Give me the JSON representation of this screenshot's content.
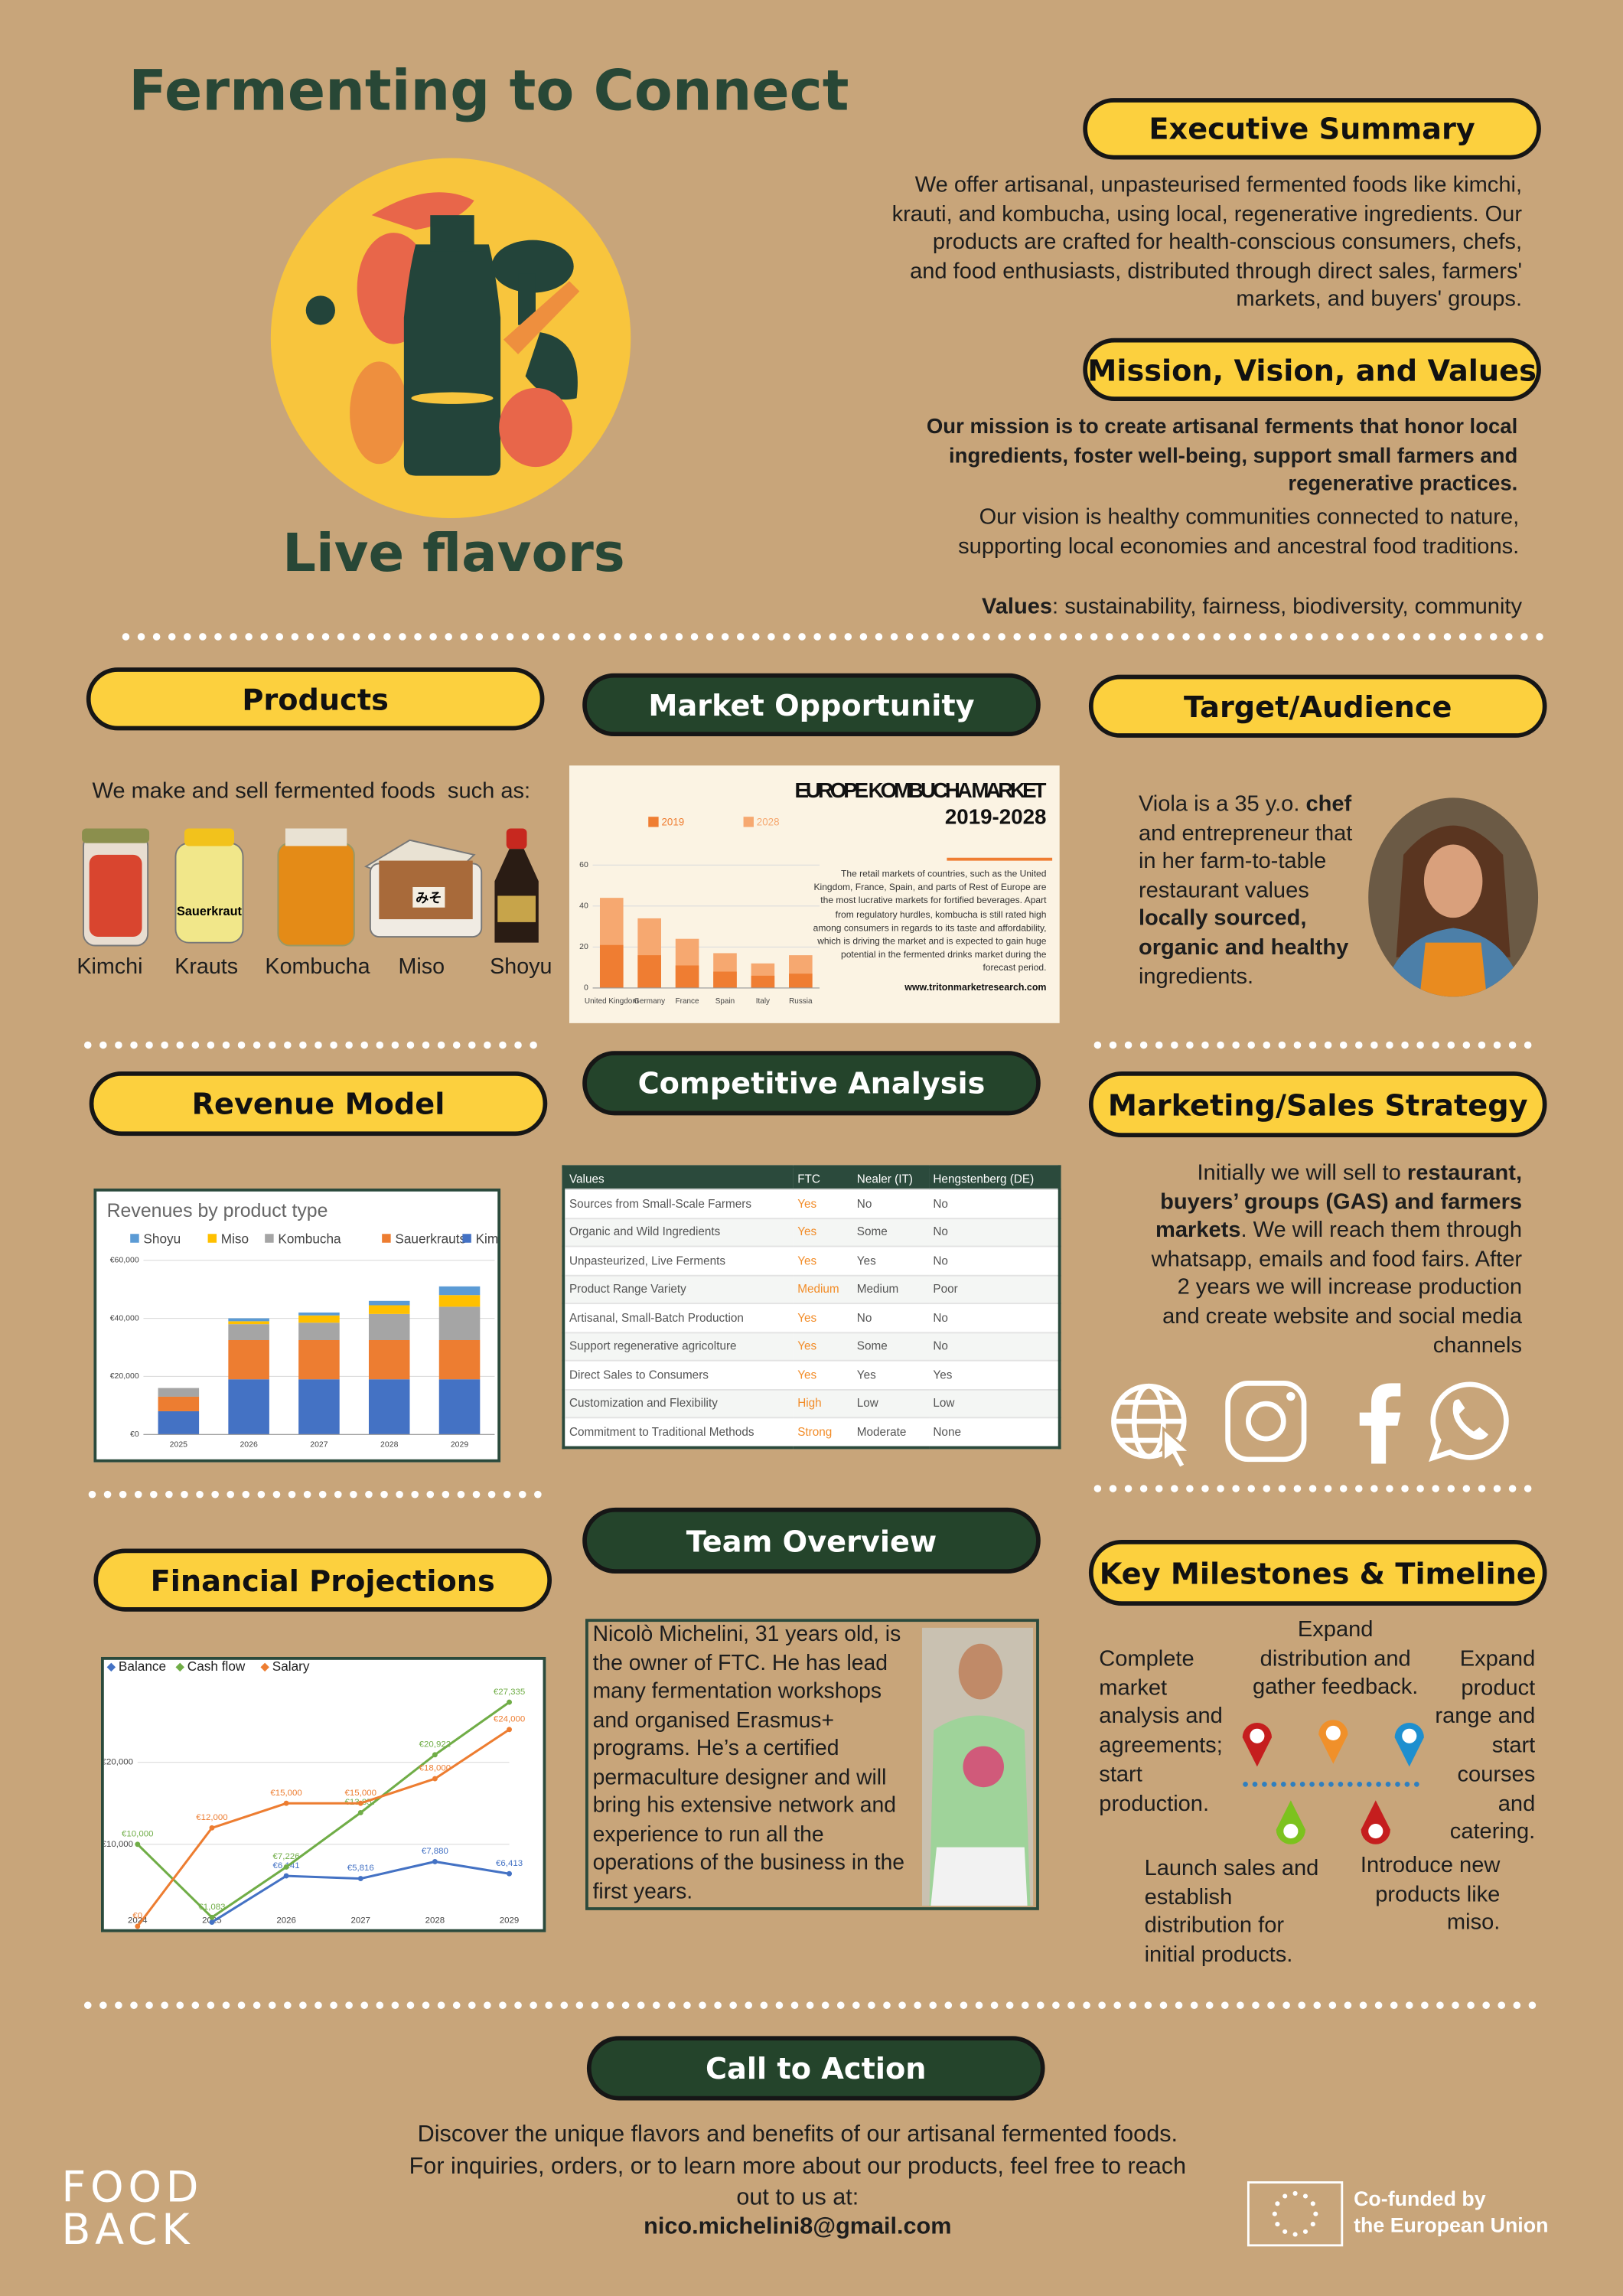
{
  "header": {
    "title": "Fermenting to Connect",
    "tagline": "Live flavors"
  },
  "executive_summary": {
    "heading": "Executive Summary",
    "text": "We offer artisanal, unpasteurised fermented foods like kimchi, krauti, and kombucha, using local, regenerative ingredients. Our products are crafted for health-conscious consumers, chefs, and food enthusiasts, distributed through direct sales, farmers' markets, and buyers' groups."
  },
  "mission": {
    "heading": "Mission, Vision, and Values",
    "mission": "Our mission is to create artisanal ferments that honor local ingredients, foster well-being, support small farmers and regenerative practices.",
    "vision": "Our vision is healthy communities connected to nature, supporting local economies and ancestral food traditions.",
    "values_label": "Values",
    "values": ":  sustainability, fairness, biodiversity, community"
  },
  "products": {
    "heading": "Products",
    "intro": "We make and sell fermented foods  such as:",
    "items": [
      "Kimchi",
      "Krauts",
      "Kombucha",
      "Miso",
      "Shoyu"
    ],
    "jar_labels": [
      "Sauerkraut",
      "みそ"
    ]
  },
  "market": {
    "heading": "Market Opportunity"
  },
  "target": {
    "heading": "Target/Audience",
    "runs": [
      {
        "text": "Viola is a 35 y.o. ",
        "bold": false
      },
      {
        "text": "chef",
        "bold": true
      },
      {
        "text": " and entrepreneur that in her farm-to-table restaurant values ",
        "bold": false
      },
      {
        "text": "locally sourced, organic and healthy",
        "bold": true
      },
      {
        "text": " ingredients.",
        "bold": false
      }
    ]
  },
  "revenue": {
    "heading": "Revenue Model"
  },
  "competition": {
    "heading": "Competitive Analysis",
    "table": {
      "header": [
        "Values",
        "FTC",
        "Nealer (IT)",
        "Hengstenberg (DE)"
      ],
      "rows": [
        [
          "Sources from Small-Scale Farmers",
          "Yes",
          "No",
          "No"
        ],
        [
          "Organic and Wild Ingredients",
          "Yes",
          "Some",
          "No"
        ],
        [
          "Unpasteurized, Live Ferments",
          "Yes",
          "Yes",
          "No"
        ],
        [
          "Product Range Variety",
          "Medium",
          "Medium",
          "Poor"
        ],
        [
          "Artisanal, Small-Batch Production",
          "Yes",
          "No",
          "No"
        ],
        [
          "Support regenerative agricolture",
          "Yes",
          "Some",
          "No"
        ],
        [
          "Direct Sales to Consumers",
          "Yes",
          "Yes",
          "Yes"
        ],
        [
          "Customization and Flexibility",
          "High",
          "Low",
          "Low"
        ],
        [
          "Commitment to Traditional Methods",
          "Strong",
          "Moderate",
          "None"
        ]
      ]
    }
  },
  "marketing": {
    "heading": "Marketing/Sales Strategy",
    "runs": [
      {
        "text": "Initially we will sell to ",
        "bold": false
      },
      {
        "text": "restaurant, buyers’ groups (GAS) and farmers markets",
        "bold": true
      },
      {
        "text": ". We will reach them through whatsapp, emails and food fairs. After 2 years we will increase production and create website and social media channels",
        "bold": false
      }
    ]
  },
  "financial": {
    "heading": "Financial Projections"
  },
  "team": {
    "heading": "Team Overview",
    "text": "Nicolò Michelini, 31 years old, is the owner of FTC. He has lead many fermentation workshops and organised Erasmus+ programs. He’s a certified permaculture designer and will bring his extensive network and experience to run all the operations of the business in the first years."
  },
  "milestones": {
    "heading": "Key Milestones & Timeline",
    "items": [
      "Complete market analysis and agreements; start production.",
      "Expand distribution and gather feedback.",
      "Expand product range and start courses and catering.",
      "Launch sales and establish distribution for initial products.",
      "Introduce new products like miso."
    ]
  },
  "cta": {
    "heading": "Call to Action",
    "text": "Discover the unique flavors and benefits of our artisanal fermented foods. For inquiries, orders, or to learn more about our products, feel free to reach out to us at:",
    "email": "nico.michelini8@gmail.com"
  },
  "footer": {
    "logo": [
      "FOOD",
      "BACK"
    ],
    "eu": [
      "Co-funded by",
      "the European Union"
    ]
  },
  "chart_data": [
    {
      "type": "bar",
      "bar_mode": "overlap",
      "title": "EUROPE KOMBUCHA MARKET",
      "subtitle": "2019-2028",
      "categories": [
        "United Kingdom",
        "Germany",
        "France",
        "Spain",
        "Italy",
        "Russia"
      ],
      "series": [
        {
          "name": "2019",
          "color": "#ef7d32",
          "values": [
            21,
            16,
            11,
            8,
            6,
            7
          ]
        },
        {
          "name": "2028",
          "color": "#f6a870",
          "values": [
            44,
            34,
            24,
            17,
            12,
            16
          ]
        }
      ],
      "ylim": [
        0,
        60
      ],
      "yticks": [
        0,
        20,
        40,
        60
      ],
      "grid": true,
      "description": "The retail markets of countries, such as the United Kingdom, France, Spain, and parts of Rest of Europe are the most lucrative markets for fortified beverages. Apart from regulatory hurdles, kombucha is still rated high among consumers in regards to its taste and affordability, which is driving the market and is expected to gain huge potential in the fermented drinks market during the forecast period.",
      "source": "www.tritonmarketresearch.com"
    },
    {
      "type": "bar",
      "bar_mode": "stacked",
      "title": "Revenues by product type",
      "categories": [
        "2025",
        "2026",
        "2027",
        "2028",
        "2029"
      ],
      "series": [
        {
          "name": "Shoyu",
          "color": "#5b9bd5",
          "values": [
            0,
            1000,
            1000,
            1500,
            3000
          ]
        },
        {
          "name": "Miso",
          "color": "#ffc000",
          "values": [
            0,
            1000,
            2500,
            3000,
            4000
          ]
        },
        {
          "name": "Kombucha",
          "color": "#a5a5a5",
          "values": [
            3000,
            5500,
            6000,
            9000,
            11500
          ]
        },
        {
          "name": "Sauerkrauts",
          "color": "#ed7d31",
          "values": [
            5000,
            13500,
            13500,
            13500,
            13500
          ]
        },
        {
          "name": "Kimchi",
          "color": "#4472c4",
          "values": [
            8000,
            19000,
            19000,
            19000,
            19000
          ]
        }
      ],
      "ylim": [
        0,
        60000
      ],
      "yticks": [
        {
          "value": 0,
          "label": "€0"
        },
        {
          "value": 20000,
          "label": "€20,000"
        },
        {
          "value": 40000,
          "label": "€40,000"
        },
        {
          "value": 60000,
          "label": "€60,000"
        }
      ],
      "grid": true
    },
    {
      "type": "line",
      "categories": [
        "2024",
        "2025",
        "2026",
        "2027",
        "2028",
        "2029"
      ],
      "series": [
        {
          "name": "Balance",
          "color": "#4472c4",
          "values": [
            null,
            500,
            6141,
            5816,
            7880,
            6413
          ],
          "value_labels": [
            null,
            null,
            "€6,141",
            "€5,816",
            "€7,880",
            "€6,413"
          ]
        },
        {
          "name": "Cash flow",
          "color": "#70ad47",
          "values": [
            10000,
            1083,
            7226,
            13857,
            20922,
            27335
          ],
          "value_labels": [
            "€10,000",
            "€1,083",
            "€7,226",
            "€13,857",
            "€20,922",
            "€27,335"
          ]
        },
        {
          "name": "Salary",
          "color": "#ed7d31",
          "values": [
            0,
            12000,
            15000,
            15000,
            18000,
            24000
          ],
          "value_labels": [
            "€0",
            "€12,000",
            "€15,000",
            "€15,000",
            "€18,000",
            "€24,000"
          ]
        }
      ],
      "ylim": [
        0,
        30000
      ],
      "yticks": [
        {
          "value": 10000,
          "label": "€10,000"
        },
        {
          "value": 20000,
          "label": "€20,000"
        }
      ],
      "grid": true
    }
  ]
}
